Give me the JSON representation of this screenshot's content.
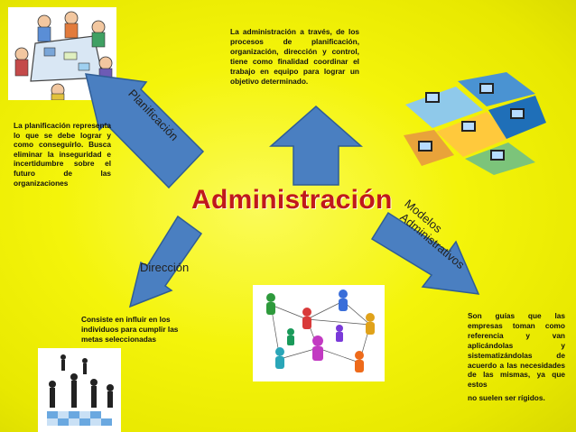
{
  "title": "Administración",
  "branches": {
    "planificacion": {
      "label": "Planificación",
      "text": "La planificación representa lo que se debe lograr y como conseguirlo. Busca eliminar la inseguridad e incertidumbre sobre el futuro de las organizaciones"
    },
    "administracion": {
      "text": "La administración a través, de los procesos de planificación, organización, dirección y control, tiene como finalidad coordinar el trabajo en equipo para lograr un objetivo determinado."
    },
    "direccion": {
      "label": "Dirección",
      "text": "Consiste en influir en los individuos para cumplir las metas seleccionadas"
    },
    "modelos": {
      "label_line1": "Modelos",
      "label_line2": "Administrativos",
      "text": "Son guías que las empresas toman como referencia y van aplicándolas y sistematizándolas de acuerdo a las necesidades de las mismas, ya que estos",
      "text_tail": "no suelen ser rígidos."
    }
  },
  "colors": {
    "background": "#f4f40a",
    "title": "#c0181c",
    "arrow_fill": "#4a7fc1",
    "arrow_stroke": "#2f5d95"
  },
  "images": [
    "meeting-table-illustration",
    "puzzle-computers-illustration",
    "network-people-illustration",
    "chess-people-illustration"
  ]
}
